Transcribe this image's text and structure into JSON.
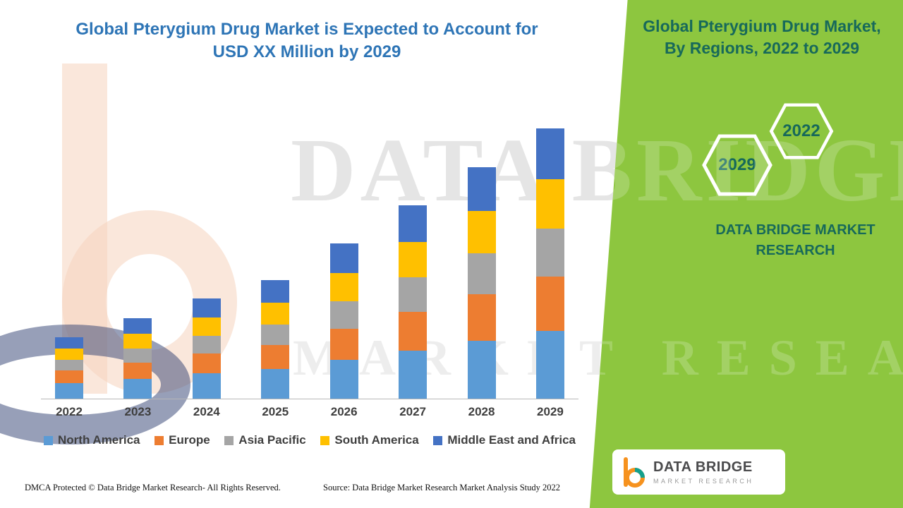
{
  "palette": {
    "panel_green": "#8dc63f",
    "title_blue": "#2e75b6",
    "teal_text": "#17695a",
    "axis_gray": "#b7b7b7",
    "label_dark": "#3f3f3f"
  },
  "left": {
    "title": "Global Pterygium Drug Market is Expected to Account for USD XX Million by 2029"
  },
  "panel": {
    "title": "Global Pterygium Drug Market, By Regions, 2022 to 2029",
    "hex_top": "2022",
    "hex_bottom": "2029",
    "brand": "DATA BRIDGE MARKET RESEARCH"
  },
  "watermark": {
    "line1": "DATA BRIDGE",
    "line2": "MARKET RESEARCH"
  },
  "footer": {
    "dmca": "DMCA Protected © Data Bridge Market Research- All Rights Reserved.",
    "source": "Source: Data Bridge Market Research Market Analysis Study 2022"
  },
  "logo": {
    "name": "DATA BRIDGE",
    "sub": "MARKET RESEARCH",
    "icon": "dbmr-b-icon"
  },
  "chart_data": {
    "type": "bar",
    "stacked": true,
    "title": "Global Pterygium Drug Market is Expected to Account for USD XX Million by 2029",
    "xlabel": "",
    "ylabel": "",
    "y_axis_visible": false,
    "values_note": "No y-axis or data labels shown in source; segment values estimated from pixel heights (relative units, USD XX Million)",
    "legend_position": "bottom",
    "ylim": [
      0,
      400
    ],
    "categories": [
      "2022",
      "2023",
      "2024",
      "2025",
      "2026",
      "2027",
      "2028",
      "2029"
    ],
    "series": [
      {
        "name": "North America",
        "color": "#5b9bd5",
        "values": [
          22,
          28,
          36,
          42,
          55,
          68,
          82,
          96
        ]
      },
      {
        "name": "Europe",
        "color": "#ed7d31",
        "values": [
          18,
          23,
          28,
          34,
          44,
          55,
          66,
          77
        ]
      },
      {
        "name": "Asia Pacific",
        "color": "#a5a5a5",
        "values": [
          15,
          20,
          25,
          29,
          39,
          49,
          58,
          68
        ]
      },
      {
        "name": "South America",
        "color": "#ffc000",
        "values": [
          16,
          21,
          26,
          31,
          40,
          50,
          60,
          70
        ]
      },
      {
        "name": "Middle East and Africa",
        "color": "#4472c4",
        "values": [
          16,
          22,
          27,
          32,
          42,
          52,
          62,
          72
        ]
      }
    ]
  }
}
